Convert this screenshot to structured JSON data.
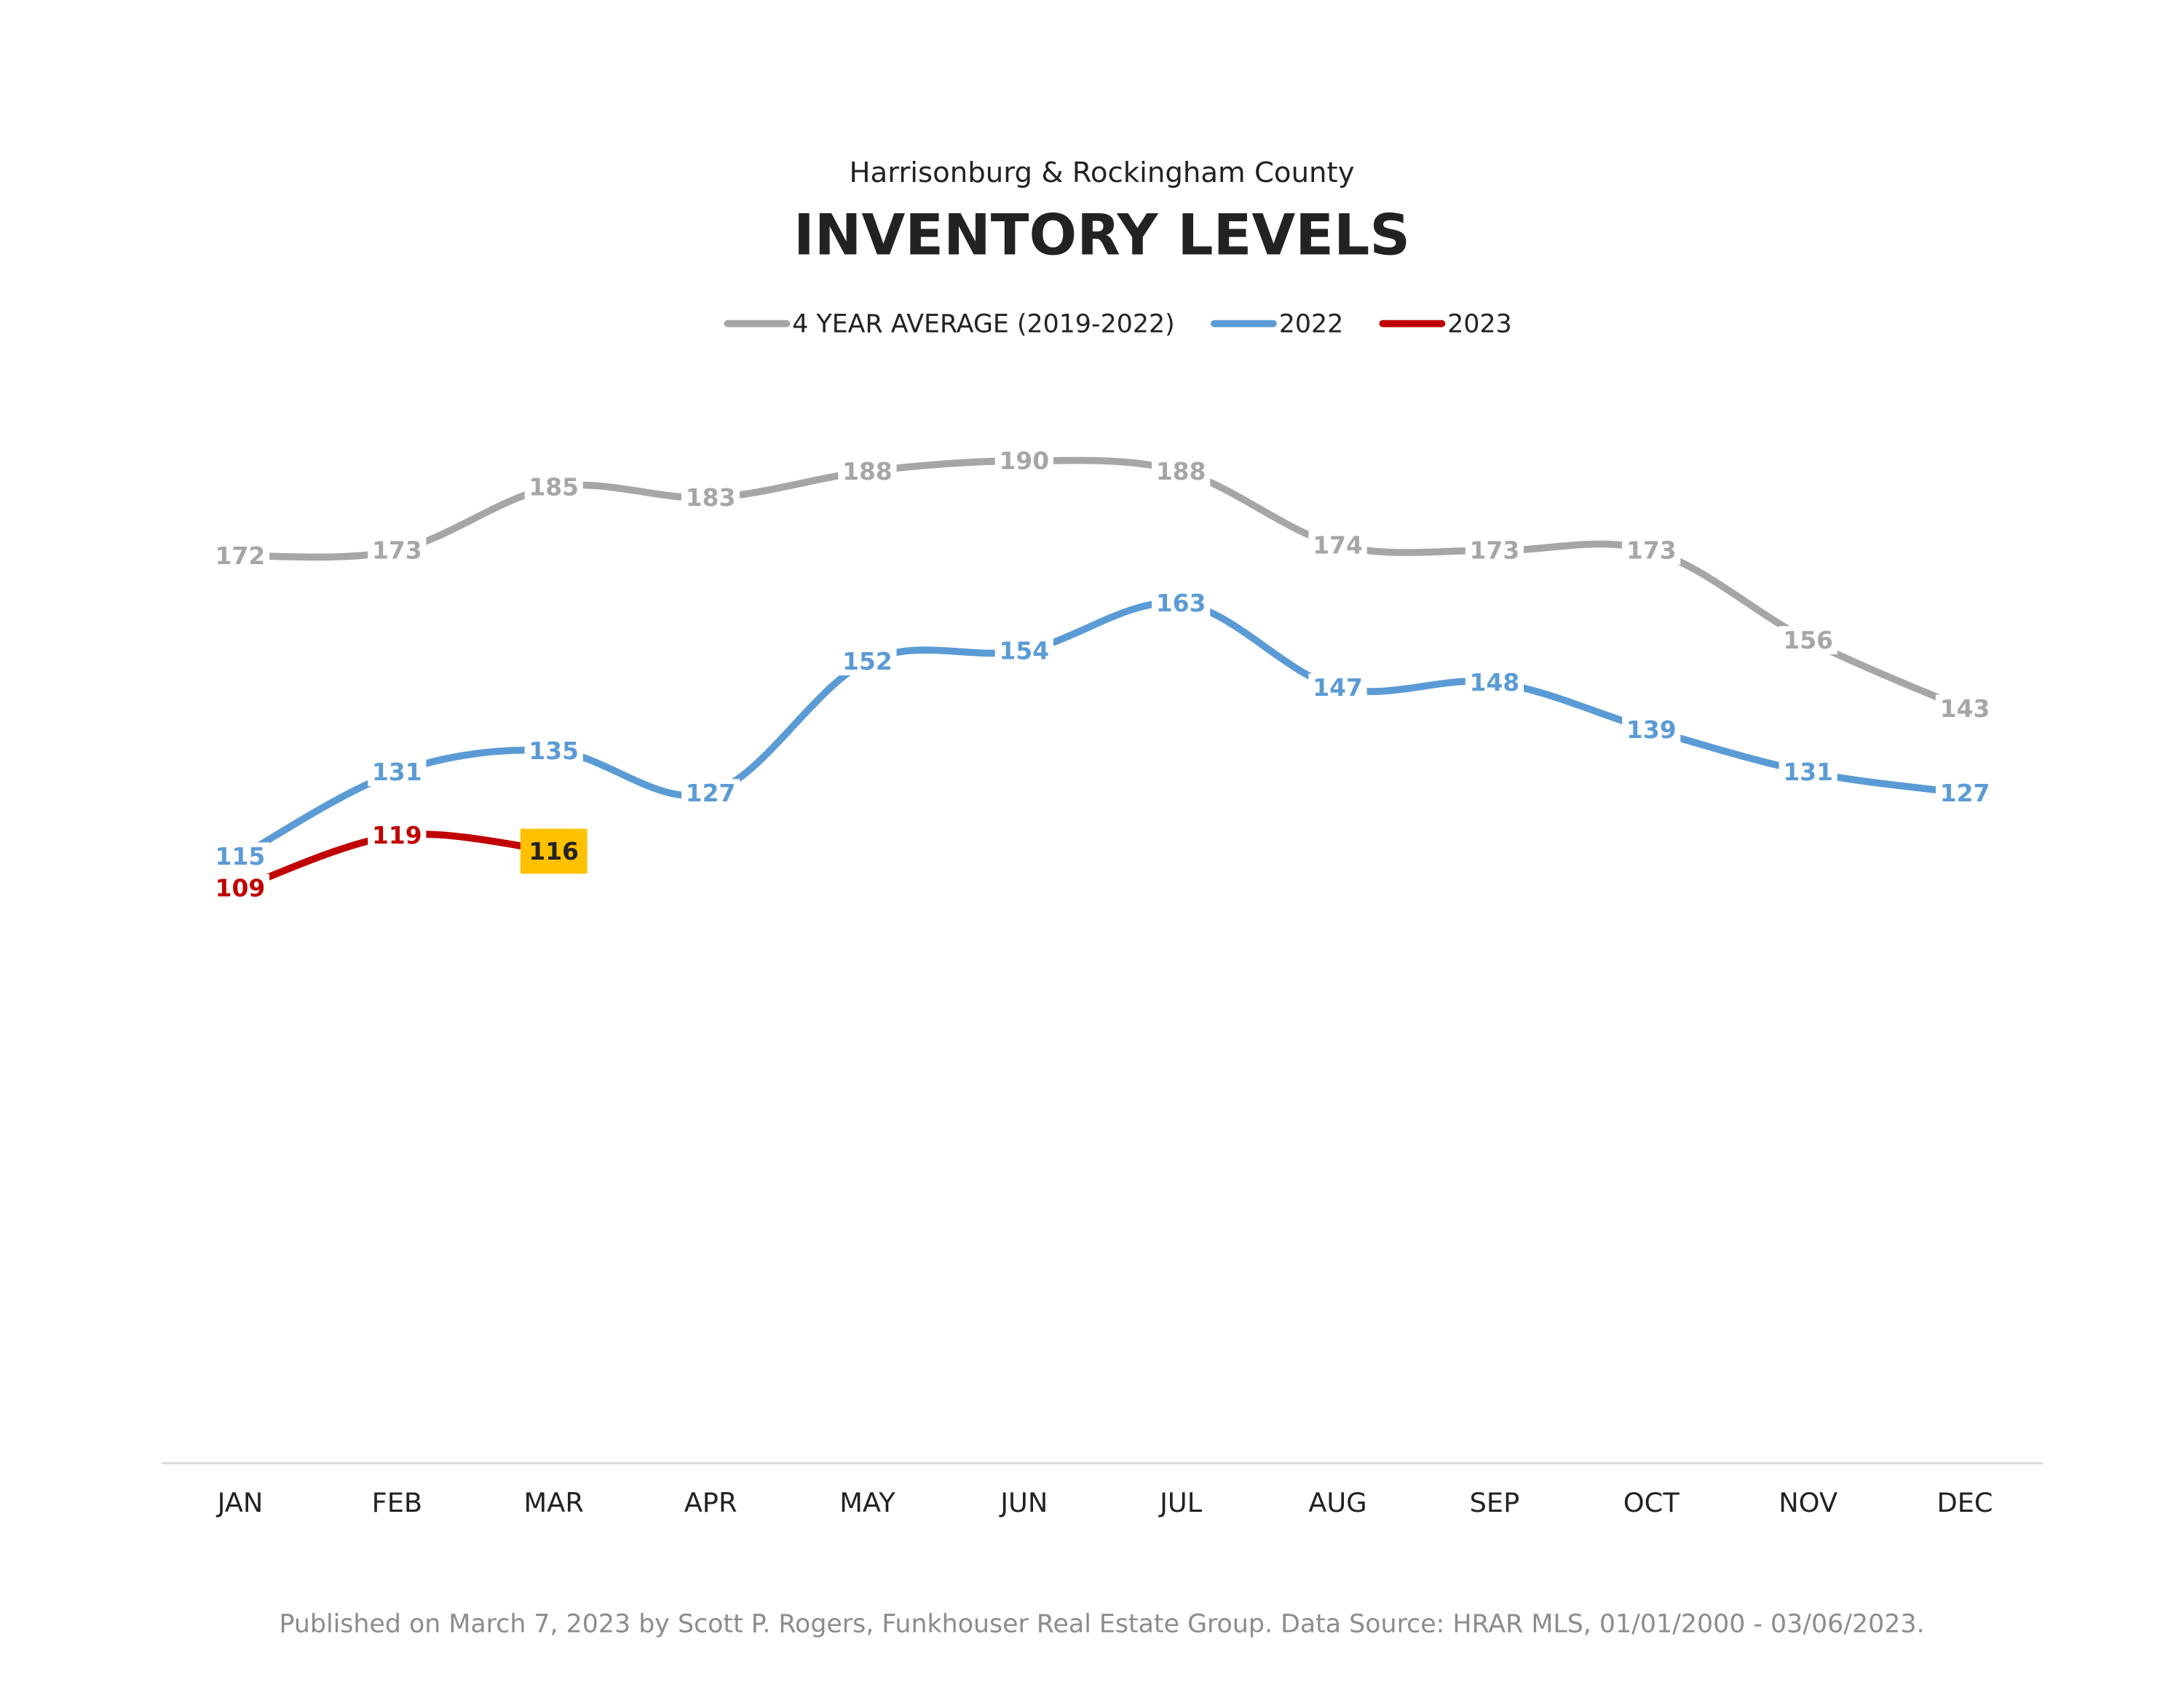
{
  "chart_data": {
    "type": "line",
    "subtitle": "Harrisonburg & Rockingham County",
    "title": "INVENTORY LEVELS",
    "categories": [
      "JAN",
      "FEB",
      "MAR",
      "APR",
      "MAY",
      "JUN",
      "JUL",
      "AUG",
      "SEP",
      "OCT",
      "NOV",
      "DEC"
    ],
    "series": [
      {
        "name": "4 YEAR AVERAGE (2019-2022)",
        "color": "#a6a6a6",
        "values": [
          172,
          173,
          185,
          183,
          188,
          190,
          188,
          174,
          173,
          173,
          156,
          143
        ]
      },
      {
        "name": "2022",
        "color": "#5b9bd5",
        "values": [
          115,
          131,
          135,
          127,
          152,
          154,
          163,
          147,
          148,
          139,
          131,
          127
        ]
      },
      {
        "name": "2023",
        "color": "#c00000",
        "values": [
          109,
          119,
          116,
          null,
          null,
          null,
          null,
          null,
          null,
          null,
          null,
          null
        ],
        "highlight_index": 2,
        "highlight_color": "#ffc000"
      }
    ],
    "ylim": [
      0,
      200
    ],
    "legend": "top",
    "note": "Published on March 7, 2023 by Scott P. Rogers, Funkhouser Real Estate Group. Data Source: HRAR MLS, 01/01/2000 - 03/06/2023."
  }
}
